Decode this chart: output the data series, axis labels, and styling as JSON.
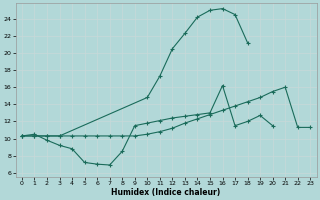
{
  "background_color": "#b2d8d8",
  "grid_color": "#d0e8e8",
  "line_color": "#1a6b5a",
  "xlabel": "Humidex (Indice chaleur)",
  "xlim": [
    -0.5,
    23.5
  ],
  "ylim": [
    5.5,
    25.8
  ],
  "yticks": [
    6,
    8,
    10,
    12,
    14,
    16,
    18,
    20,
    22,
    24
  ],
  "xticks": [
    0,
    1,
    2,
    3,
    4,
    5,
    6,
    7,
    8,
    9,
    10,
    11,
    12,
    13,
    14,
    15,
    16,
    17,
    18,
    19,
    20,
    21,
    22,
    23
  ],
  "line1_x": [
    0,
    1,
    2,
    3,
    4,
    5,
    6,
    7,
    8,
    9,
    10,
    11,
    12,
    13,
    14,
    15,
    16,
    17,
    18,
    19,
    20,
    21,
    22,
    23
  ],
  "line1_y": [
    10.3,
    10.5,
    9.8,
    9.2,
    8.8,
    7.2,
    7.0,
    6.9,
    8.5,
    11.5,
    11.8,
    12.1,
    12.4,
    12.6,
    12.8,
    13.0,
    16.2,
    11.5,
    12.0,
    12.7,
    11.5,
    null,
    null,
    null
  ],
  "line2_x": [
    0,
    1,
    2,
    3,
    4,
    5,
    6,
    7,
    8,
    9,
    10,
    11,
    12,
    13,
    14,
    15,
    16,
    17,
    18,
    19,
    20,
    21,
    22,
    23
  ],
  "line2_y": [
    10.3,
    10.3,
    10.3,
    10.3,
    10.3,
    10.3,
    10.3,
    10.3,
    10.3,
    10.3,
    10.5,
    10.8,
    11.2,
    11.8,
    12.3,
    12.8,
    13.3,
    13.8,
    14.3,
    14.8,
    15.5,
    16.0,
    11.3,
    11.3
  ],
  "line3_x": [
    0,
    1,
    2,
    3,
    10,
    11,
    12,
    13,
    14,
    15,
    16,
    17,
    18
  ],
  "line3_y": [
    10.3,
    10.3,
    10.3,
    10.3,
    14.8,
    17.3,
    20.5,
    22.3,
    24.2,
    25.0,
    25.2,
    24.5,
    21.2
  ]
}
